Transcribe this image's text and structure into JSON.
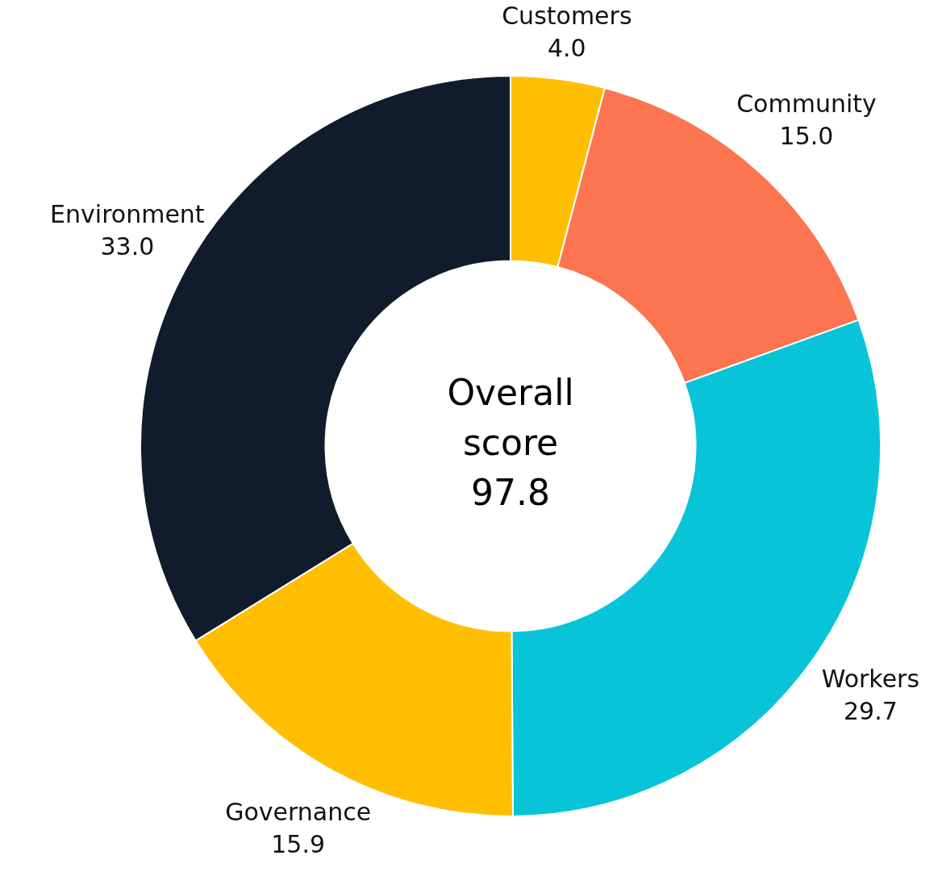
{
  "chart_data": {
    "type": "donut",
    "categories": [
      "Customers",
      "Community",
      "Workers",
      "Governance",
      "Environment"
    ],
    "values": [
      4.0,
      15.0,
      29.7,
      15.9,
      33.0
    ],
    "value_labels": [
      "4.0",
      "15.0",
      "29.7",
      "15.9",
      "33.0"
    ],
    "colors": [
      "#ffbf00",
      "#fd7450",
      "#08c4d9",
      "#ffbf00",
      "#101c2b"
    ],
    "annotations": [
      "Overall score 97.8"
    ],
    "legend": false
  }
}
